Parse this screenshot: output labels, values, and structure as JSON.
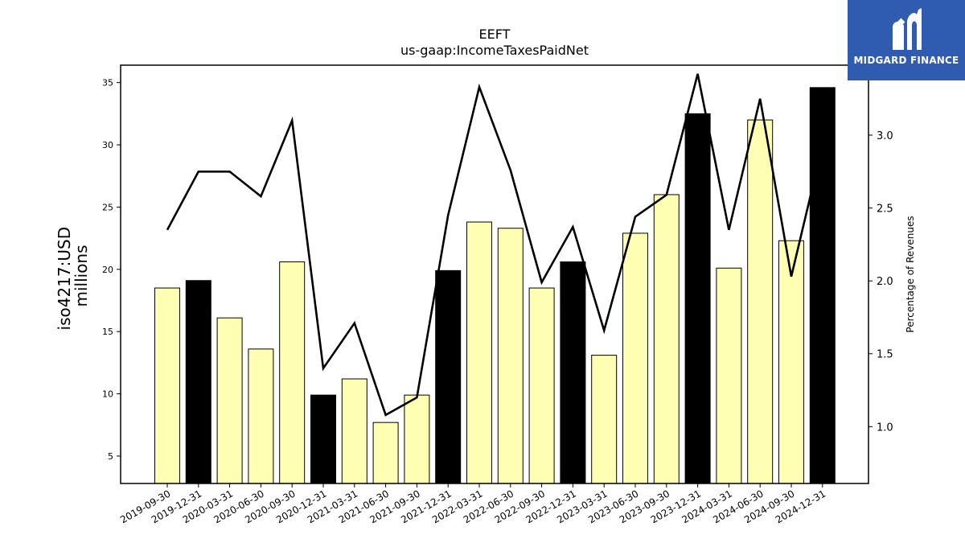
{
  "chart_data": {
    "type": "bar",
    "title": "EEFT",
    "subtitle": "us-gaap:IncomeTaxesPaidNet",
    "ylabel": [
      "iso4217:USD",
      "millions"
    ],
    "y2label": "Percentage of Revenues",
    "ylim": [
      2.8,
      36.4
    ],
    "y2lim": [
      0.61,
      3.48
    ],
    "yticks": [
      "5",
      "10",
      "15",
      "20",
      "25",
      "30",
      "35"
    ],
    "y2ticks": [
      "1.0",
      "1.5",
      "2.0",
      "2.5",
      "3.0"
    ],
    "categories": [
      "2019-09-30",
      "2019-12-31",
      "2020-03-31",
      "2020-06-30",
      "2020-09-30",
      "2020-12-31",
      "2021-03-31",
      "2021-06-30",
      "2021-09-30",
      "2021-12-31",
      "2022-03-31",
      "2022-06-30",
      "2022-09-30",
      "2022-12-31",
      "2023-03-31",
      "2023-06-30",
      "2023-09-30",
      "2023-12-31",
      "2024-03-31",
      "2024-06-30",
      "2024-09-30",
      "2024-12-31"
    ],
    "series": [
      {
        "type": "bar",
        "axis": "left",
        "values": [
          18.5,
          19.1,
          16.1,
          13.6,
          20.6,
          9.9,
          11.2,
          7.7,
          9.9,
          19.9,
          23.8,
          23.3,
          18.5,
          20.6,
          13.1,
          22.9,
          26.0,
          32.5,
          20.1,
          32.0,
          22.3,
          34.6
        ],
        "highlight": [
          false,
          true,
          false,
          false,
          false,
          true,
          false,
          false,
          false,
          true,
          false,
          false,
          false,
          true,
          false,
          false,
          false,
          true,
          false,
          false,
          false,
          true
        ]
      },
      {
        "type": "line",
        "axis": "right",
        "values": [
          2.35,
          2.75,
          2.75,
          2.58,
          3.1,
          1.4,
          1.71,
          1.08,
          1.2,
          2.45,
          3.33,
          2.76,
          1.99,
          2.37,
          1.66,
          2.44,
          2.59,
          3.42,
          2.35,
          3.25,
          2.03,
          2.93
        ]
      }
    ],
    "colors": {
      "bar": "#ffffb3",
      "bar_highlight": "#000000",
      "line": "#000000",
      "axis": "#000000"
    }
  },
  "logo": {
    "text": "MIDGARD FINANCE",
    "color": "#2f5bb0"
  }
}
